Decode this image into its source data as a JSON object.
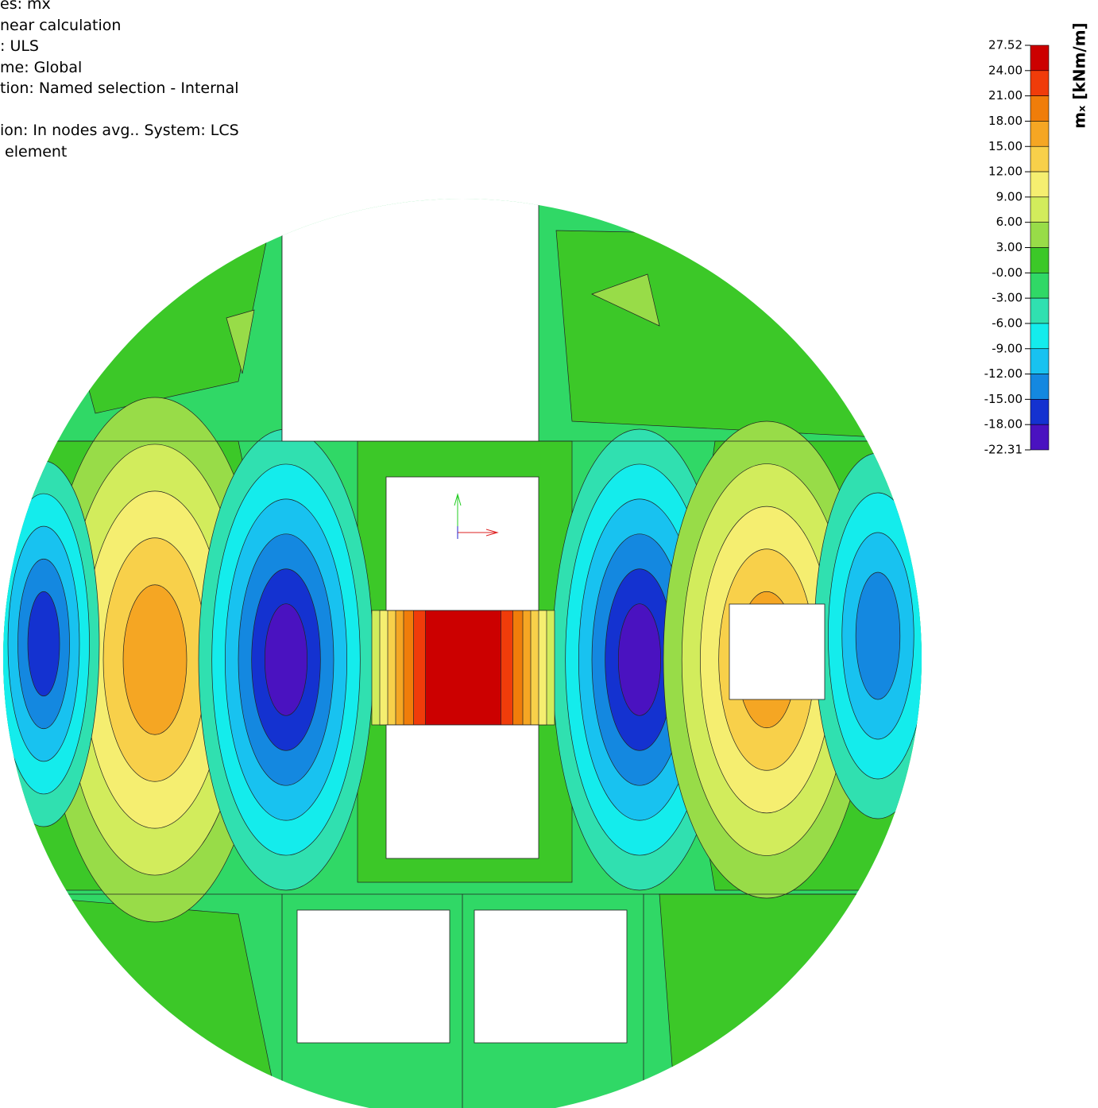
{
  "header": {
    "lines": [
      "es: mx",
      "near calculation",
      ": ULS",
      "me: Global",
      "tion: Named selection - Internal",
      "ion: In nodes avg.. System: LCS",
      " element"
    ]
  },
  "legend": {
    "title": "mₓ [kNm/m]",
    "labels": [
      "27.52",
      "24.00",
      "21.00",
      "18.00",
      "15.00",
      "12.00",
      "9.00",
      "6.00",
      "3.00",
      "-0.00",
      "-3.00",
      "-6.00",
      "-9.00",
      "-12.00",
      "-15.00",
      "-18.00",
      "-22.31"
    ],
    "colors": [
      "#cc0000",
      "#f03c0a",
      "#f07d0a",
      "#f5a623",
      "#f8d04a",
      "#f5ee70",
      "#d2ec5c",
      "#98dc48",
      "#3cc828",
      "#30d866",
      "#30e0b0",
      "#14ecec",
      "#18c2f0",
      "#1488e0",
      "#1432d0",
      "#4a12c0"
    ]
  }
}
